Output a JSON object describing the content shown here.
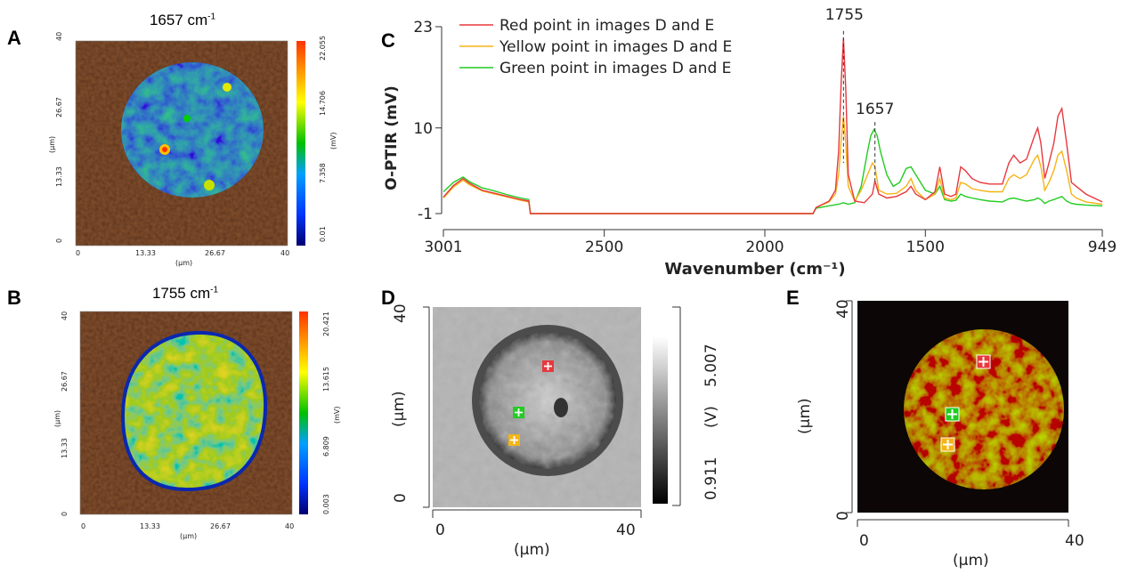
{
  "panels": {
    "A": {
      "letter": "A",
      "title_main": "1657 cm",
      "title_sup": "-1",
      "y_ticks": [
        "40",
        "26.67",
        "13.33",
        "0"
      ],
      "x_ticks": [
        "0",
        "13.33",
        "26.67",
        "40"
      ],
      "y_unit": "(µm)",
      "x_unit": "(µm)",
      "cbar_ticks": [
        "22.055",
        "14.706",
        "7.358",
        "0.01"
      ],
      "cbar_unit": "(mV)"
    },
    "B": {
      "letter": "B",
      "title_main": "1755 cm",
      "title_sup": "-1",
      "y_ticks": [
        "40",
        "26.67",
        "13.33",
        "0"
      ],
      "x_ticks": [
        "0",
        "13.33",
        "26.67",
        "40"
      ],
      "y_unit": "(µm)",
      "x_unit": "(µm)",
      "cbar_ticks": [
        "20.421",
        "13.615",
        "6.809",
        "0.003"
      ],
      "cbar_unit": "(mV)"
    },
    "C": {
      "letter": "C"
    },
    "D": {
      "letter": "D",
      "y_ticks": [
        "40",
        "0"
      ],
      "x_ticks": [
        "0",
        "40"
      ],
      "y_unit": "(µm)",
      "x_unit": "(µm)",
      "cbar_max": "5.007",
      "cbar_min": "0.911",
      "cbar_unit": "(V)"
    },
    "E": {
      "letter": "E",
      "y_ticks": [
        "40",
        "0"
      ],
      "x_ticks": [
        "0",
        "40"
      ],
      "y_unit": "(µm)",
      "x_unit": "(µm)"
    }
  },
  "colors": {
    "red": "#e8383d",
    "yellow": "#f5b417",
    "green": "#22cc22",
    "map_background": "#4a1e0c"
  },
  "chart_data": {
    "type": "line",
    "xlabel": "Wavenumber (cm⁻¹)",
    "ylabel": "O-PTIR (mV)",
    "xlim": [
      3001,
      949
    ],
    "ylim": [
      -1,
      23
    ],
    "x_ticks": [
      "3001",
      "2500",
      "2000",
      "1500",
      "949"
    ],
    "y_ticks": [
      "23",
      "10",
      "-1"
    ],
    "annotations": [
      "1755",
      "1657"
    ],
    "legend_position": "top-left",
    "series": [
      {
        "name": "Red point in images D and E",
        "color": "#e8383d",
        "points": [
          [
            3001,
            1.1
          ],
          [
            2970,
            2.6
          ],
          [
            2940,
            3.5
          ],
          [
            2920,
            2.9
          ],
          [
            2880,
            2.0
          ],
          [
            2850,
            1.7
          ],
          [
            2800,
            1.2
          ],
          [
            2760,
            0.8
          ],
          [
            2735,
            0.6
          ],
          [
            2730,
            -1
          ],
          [
            2400,
            -1
          ],
          [
            2000,
            -1
          ],
          [
            1850,
            -1
          ],
          [
            1840,
            -0.2
          ],
          [
            1800,
            0.6
          ],
          [
            1780,
            2.0
          ],
          [
            1770,
            7
          ],
          [
            1762,
            16
          ],
          [
            1755,
            21.5
          ],
          [
            1748,
            15
          ],
          [
            1740,
            4
          ],
          [
            1720,
            0.6
          ],
          [
            1690,
            0.4
          ],
          [
            1665,
            1.5
          ],
          [
            1657,
            3.2
          ],
          [
            1645,
            1.5
          ],
          [
            1620,
            1.0
          ],
          [
            1590,
            1.2
          ],
          [
            1560,
            1.8
          ],
          [
            1545,
            2.5
          ],
          [
            1530,
            1.5
          ],
          [
            1500,
            0.8
          ],
          [
            1470,
            1.8
          ],
          [
            1455,
            5.0
          ],
          [
            1440,
            1.5
          ],
          [
            1420,
            1.2
          ],
          [
            1405,
            1.5
          ],
          [
            1390,
            5.0
          ],
          [
            1375,
            4.5
          ],
          [
            1355,
            3.5
          ],
          [
            1330,
            3.0
          ],
          [
            1300,
            2.8
          ],
          [
            1260,
            2.8
          ],
          [
            1240,
            5.5
          ],
          [
            1225,
            6.5
          ],
          [
            1205,
            5.5
          ],
          [
            1185,
            6.0
          ],
          [
            1160,
            9.0
          ],
          [
            1150,
            10.0
          ],
          [
            1140,
            8.0
          ],
          [
            1128,
            3.5
          ],
          [
            1115,
            5.5
          ],
          [
            1100,
            8.0
          ],
          [
            1087,
            11.5
          ],
          [
            1075,
            12.5
          ],
          [
            1060,
            8.0
          ],
          [
            1045,
            3.0
          ],
          [
            1030,
            2.5
          ],
          [
            1000,
            1.5
          ],
          [
            949,
            0.5
          ]
        ]
      },
      {
        "name": "Yellow point in images D and E",
        "color": "#f5b417",
        "points": [
          [
            3001,
            1.0
          ],
          [
            2970,
            2.4
          ],
          [
            2940,
            3.3
          ],
          [
            2920,
            2.7
          ],
          [
            2880,
            1.9
          ],
          [
            2850,
            1.6
          ],
          [
            2800,
            1.1
          ],
          [
            2760,
            0.7
          ],
          [
            2735,
            0.5
          ],
          [
            2730,
            -1
          ],
          [
            2400,
            -1
          ],
          [
            2000,
            -1
          ],
          [
            1850,
            -1
          ],
          [
            1840,
            -0.2
          ],
          [
            1800,
            0.5
          ],
          [
            1780,
            1.5
          ],
          [
            1770,
            4.0
          ],
          [
            1762,
            8.5
          ],
          [
            1755,
            11.5
          ],
          [
            1748,
            8.0
          ],
          [
            1740,
            2.5
          ],
          [
            1720,
            0.6
          ],
          [
            1700,
            2.0
          ],
          [
            1680,
            4.0
          ],
          [
            1665,
            5.5
          ],
          [
            1657,
            5.0
          ],
          [
            1645,
            2.0
          ],
          [
            1620,
            1.5
          ],
          [
            1590,
            1.6
          ],
          [
            1560,
            2.5
          ],
          [
            1545,
            3.5
          ],
          [
            1530,
            2.0
          ],
          [
            1500,
            0.8
          ],
          [
            1470,
            1.5
          ],
          [
            1455,
            3.5
          ],
          [
            1440,
            1.0
          ],
          [
            1420,
            0.8
          ],
          [
            1405,
            1.0
          ],
          [
            1390,
            3.0
          ],
          [
            1375,
            2.8
          ],
          [
            1355,
            2.2
          ],
          [
            1330,
            2.0
          ],
          [
            1300,
            1.8
          ],
          [
            1260,
            1.8
          ],
          [
            1240,
            3.5
          ],
          [
            1225,
            4.0
          ],
          [
            1205,
            3.5
          ],
          [
            1185,
            4.0
          ],
          [
            1160,
            6.0
          ],
          [
            1150,
            6.5
          ],
          [
            1140,
            5.0
          ],
          [
            1128,
            2.0
          ],
          [
            1115,
            3.0
          ],
          [
            1100,
            4.5
          ],
          [
            1087,
            6.5
          ],
          [
            1075,
            7.0
          ],
          [
            1060,
            4.5
          ],
          [
            1045,
            1.5
          ],
          [
            1030,
            1.0
          ],
          [
            1000,
            0.5
          ],
          [
            949,
            0.2
          ]
        ]
      },
      {
        "name": "Green point in images D and E",
        "color": "#22cc22",
        "points": [
          [
            3001,
            1.8
          ],
          [
            2970,
            3.0
          ],
          [
            2940,
            3.7
          ],
          [
            2920,
            3.1
          ],
          [
            2880,
            2.3
          ],
          [
            2850,
            2.0
          ],
          [
            2800,
            1.4
          ],
          [
            2760,
            1.0
          ],
          [
            2735,
            0.8
          ],
          [
            2730,
            -1
          ],
          [
            2400,
            -1
          ],
          [
            2000,
            -1
          ],
          [
            1850,
            -1
          ],
          [
            1840,
            -0.3
          ],
          [
            1800,
            0.0
          ],
          [
            1770,
            0.2
          ],
          [
            1755,
            0.4
          ],
          [
            1740,
            0.2
          ],
          [
            1720,
            0.4
          ],
          [
            1700,
            2.5
          ],
          [
            1680,
            7.0
          ],
          [
            1670,
            9.0
          ],
          [
            1660,
            9.8
          ],
          [
            1650,
            9.0
          ],
          [
            1640,
            7.0
          ],
          [
            1620,
            4.0
          ],
          [
            1600,
            2.5
          ],
          [
            1580,
            3.0
          ],
          [
            1560,
            4.8
          ],
          [
            1545,
            5.0
          ],
          [
            1530,
            4.0
          ],
          [
            1500,
            2.0
          ],
          [
            1470,
            1.5
          ],
          [
            1455,
            2.5
          ],
          [
            1440,
            0.8
          ],
          [
            1420,
            0.6
          ],
          [
            1405,
            0.7
          ],
          [
            1390,
            1.5
          ],
          [
            1375,
            1.2
          ],
          [
            1355,
            1.0
          ],
          [
            1330,
            0.8
          ],
          [
            1300,
            0.6
          ],
          [
            1260,
            0.5
          ],
          [
            1240,
            0.9
          ],
          [
            1225,
            1.0
          ],
          [
            1205,
            0.8
          ],
          [
            1185,
            0.6
          ],
          [
            1160,
            0.8
          ],
          [
            1150,
            1.0
          ],
          [
            1140,
            0.8
          ],
          [
            1128,
            0.3
          ],
          [
            1115,
            0.6
          ],
          [
            1100,
            0.8
          ],
          [
            1087,
            1.0
          ],
          [
            1075,
            1.2
          ],
          [
            1060,
            0.6
          ],
          [
            1045,
            0.3
          ],
          [
            1030,
            0.2
          ],
          [
            1000,
            0.1
          ],
          [
            949,
            0.0
          ]
        ]
      }
    ]
  }
}
